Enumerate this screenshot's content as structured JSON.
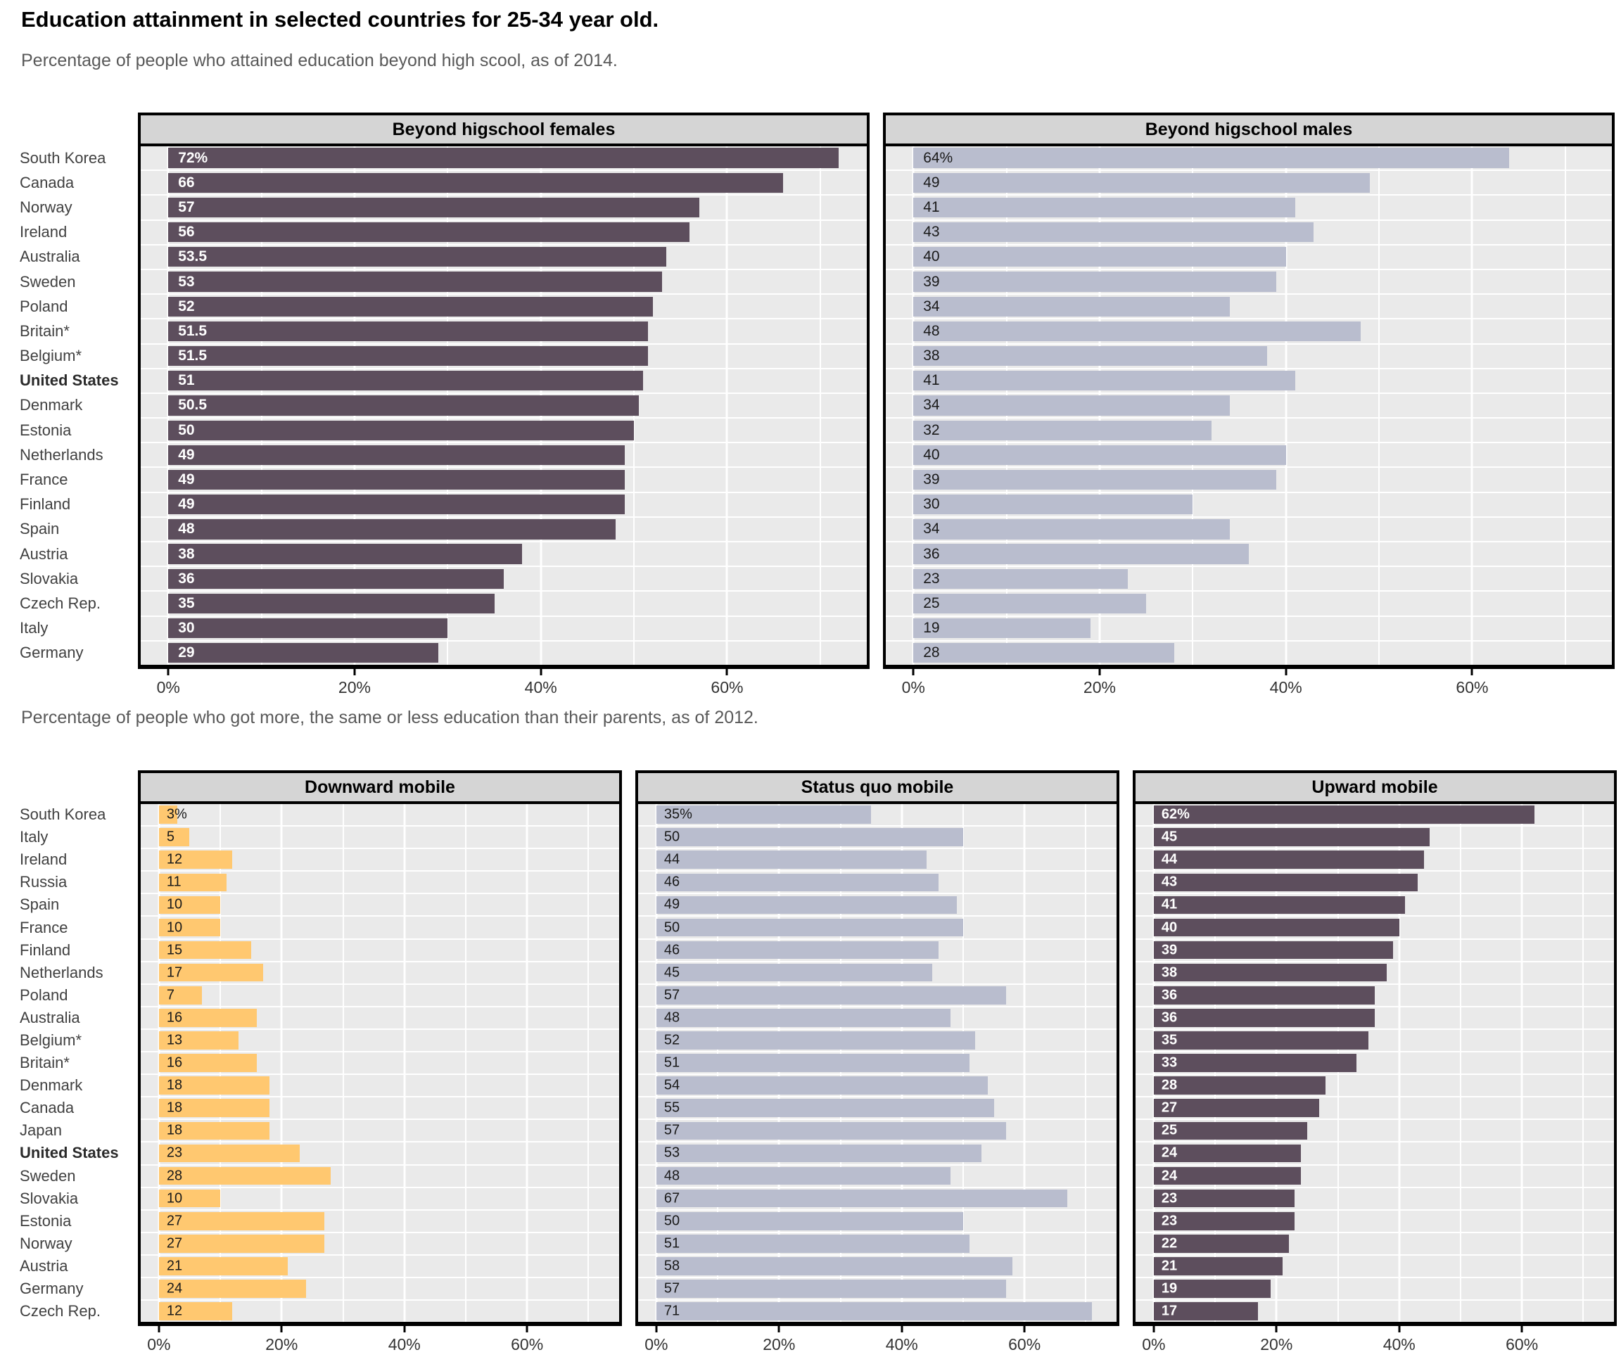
{
  "page": {
    "title": "Education attainment in selected countries for 25-34 year old.",
    "subtitle_2014": "Percentage of people who attained education beyond high scool, as of 2014.",
    "subtitle_2012": "Percentage of people who got more, the same or less education than their parents, as of 2012."
  },
  "axis": {
    "tick_labels": [
      "0%",
      "20%",
      "40%",
      "60%"
    ],
    "tick_values": [
      0,
      20,
      40,
      60
    ],
    "major_values": [
      0,
      20,
      40,
      60
    ],
    "minor_values": [
      10,
      30,
      50,
      70
    ],
    "xmax": 75
  },
  "colors": {
    "purple": "#5D4E5D",
    "blue": "#B9BDCE",
    "orange": "#FFC870",
    "panel_bg": "#EAEAEA",
    "strip_bg": "#D5D5D5",
    "grid": "#FFFFFF"
  },
  "bold_country": "United States",
  "chart_data": [
    {
      "type": "bar",
      "orientation": "horizontal",
      "group": "beyond-highschool-2014",
      "title": "Beyond higschool females",
      "bar_color": "#5D4E5D",
      "value_label_style": "light",
      "xlim": [
        0,
        75
      ],
      "xticks": [
        "0%",
        "20%",
        "40%",
        "60%"
      ],
      "grid": "on",
      "categories": [
        "South Korea",
        "Canada",
        "Norway",
        "Ireland",
        "Australia",
        "Sweden",
        "Poland",
        "Britain*",
        "Belgium*",
        "United States",
        "Denmark",
        "Estonia",
        "Netherlands",
        "France",
        "Finland",
        "Spain",
        "Austria",
        "Slovakia",
        "Czech Rep.",
        "Italy",
        "Germany"
      ],
      "values": [
        72,
        66,
        57,
        56,
        53.5,
        53,
        52,
        51.5,
        51.5,
        51,
        50.5,
        50,
        49,
        49,
        49,
        48,
        38,
        36,
        35,
        30,
        29
      ],
      "value_labels": [
        "72%",
        "66",
        "57",
        "56",
        "53.5",
        "53",
        "52",
        "51.5",
        "51.5",
        "51",
        "50.5",
        "50",
        "49",
        "49",
        "49",
        "48",
        "38",
        "36",
        "35",
        "30",
        "29"
      ]
    },
    {
      "type": "bar",
      "orientation": "horizontal",
      "group": "beyond-highschool-2014",
      "title": "Beyond higschool males",
      "bar_color": "#B9BDCE",
      "value_label_style": "dark",
      "xlim": [
        0,
        75
      ],
      "xticks": [
        "0%",
        "20%",
        "40%",
        "60%"
      ],
      "grid": "on",
      "categories": [
        "South Korea",
        "Canada",
        "Norway",
        "Ireland",
        "Australia",
        "Sweden",
        "Poland",
        "Britain*",
        "Belgium*",
        "United States",
        "Denmark",
        "Estonia",
        "Netherlands",
        "France",
        "Finland",
        "Spain",
        "Austria",
        "Slovakia",
        "Czech Rep.",
        "Italy",
        "Germany"
      ],
      "values": [
        64,
        49,
        41,
        43,
        40,
        39,
        34,
        48,
        38,
        41,
        34,
        32,
        40,
        39,
        30,
        34,
        36,
        23,
        25,
        19,
        28
      ],
      "value_labels": [
        "64%",
        "49",
        "41",
        "43",
        "40",
        "39",
        "34",
        "48",
        "38",
        "41",
        "34",
        "32",
        "40",
        "39",
        "30",
        "34",
        "36",
        "23",
        "25",
        "19",
        "28"
      ]
    },
    {
      "type": "bar",
      "orientation": "horizontal",
      "group": "mobility-2012",
      "title": "Downward mobile",
      "bar_color": "#FFC870",
      "value_label_style": "dark",
      "xlim": [
        0,
        75
      ],
      "xticks": [
        "0%",
        "20%",
        "40%",
        "60%"
      ],
      "grid": "on",
      "categories": [
        "South Korea",
        "Italy",
        "Ireland",
        "Russia",
        "Spain",
        "France",
        "Finland",
        "Netherlands",
        "Poland",
        "Australia",
        "Belgium*",
        "Britain*",
        "Denmark",
        "Canada",
        "Japan",
        "United States",
        "Sweden",
        "Slovakia",
        "Estonia",
        "Norway",
        "Austria",
        "Germany",
        "Czech Rep."
      ],
      "values": [
        3,
        5,
        12,
        11,
        10,
        10,
        15,
        17,
        7,
        16,
        13,
        16,
        18,
        18,
        18,
        23,
        28,
        10,
        27,
        27,
        21,
        24,
        12
      ],
      "value_labels": [
        "3%",
        "5",
        "12",
        "11",
        "10",
        "10",
        "15",
        "17",
        "7",
        "16",
        "13",
        "16",
        "18",
        "18",
        "18",
        "23",
        "28",
        "10",
        "27",
        "27",
        "21",
        "24",
        "12"
      ]
    },
    {
      "type": "bar",
      "orientation": "horizontal",
      "group": "mobility-2012",
      "title": "Status quo mobile",
      "bar_color": "#B9BDCE",
      "value_label_style": "dark",
      "xlim": [
        0,
        75
      ],
      "xticks": [
        "0%",
        "20%",
        "40%",
        "60%"
      ],
      "grid": "on",
      "categories": [
        "South Korea",
        "Italy",
        "Ireland",
        "Russia",
        "Spain",
        "France",
        "Finland",
        "Netherlands",
        "Poland",
        "Australia",
        "Belgium*",
        "Britain*",
        "Denmark",
        "Canada",
        "Japan",
        "United States",
        "Sweden",
        "Slovakia",
        "Estonia",
        "Norway",
        "Austria",
        "Germany",
        "Czech Rep."
      ],
      "values": [
        35,
        50,
        44,
        46,
        49,
        50,
        46,
        45,
        57,
        48,
        52,
        51,
        54,
        55,
        57,
        53,
        48,
        67,
        50,
        51,
        58,
        57,
        71
      ],
      "value_labels": [
        "35%",
        "50",
        "44",
        "46",
        "49",
        "50",
        "46",
        "45",
        "57",
        "48",
        "52",
        "51",
        "54",
        "55",
        "57",
        "53",
        "48",
        "67",
        "50",
        "51",
        "58",
        "57",
        "71"
      ]
    },
    {
      "type": "bar",
      "orientation": "horizontal",
      "group": "mobility-2012",
      "title": "Upward mobile",
      "bar_color": "#5D4E5D",
      "value_label_style": "light",
      "xlim": [
        0,
        75
      ],
      "xticks": [
        "0%",
        "20%",
        "40%",
        "60%"
      ],
      "grid": "on",
      "categories": [
        "South Korea",
        "Italy",
        "Ireland",
        "Russia",
        "Spain",
        "France",
        "Finland",
        "Netherlands",
        "Poland",
        "Australia",
        "Belgium*",
        "Britain*",
        "Denmark",
        "Canada",
        "Japan",
        "United States",
        "Sweden",
        "Slovakia",
        "Estonia",
        "Norway",
        "Austria",
        "Germany",
        "Czech Rep."
      ],
      "values": [
        62,
        45,
        44,
        43,
        41,
        40,
        39,
        38,
        36,
        36,
        35,
        33,
        28,
        27,
        25,
        24,
        24,
        23,
        23,
        22,
        21,
        19,
        17
      ],
      "value_labels": [
        "62%",
        "45",
        "44",
        "43",
        "41",
        "40",
        "39",
        "38",
        "36",
        "36",
        "35",
        "33",
        "28",
        "27",
        "25",
        "24",
        "24",
        "23",
        "23",
        "22",
        "21",
        "19",
        "17"
      ]
    }
  ]
}
